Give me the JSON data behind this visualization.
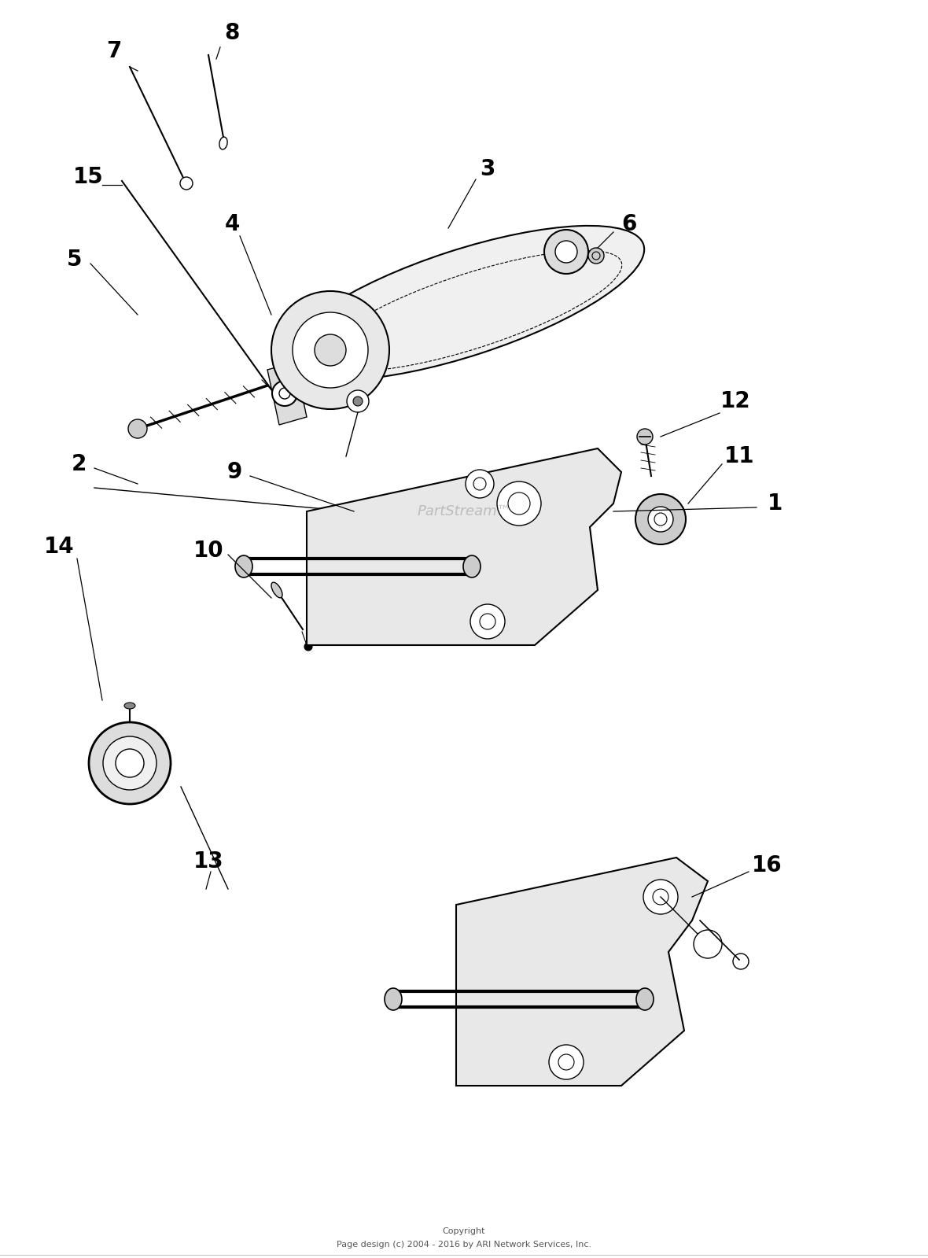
{
  "background_color": "#ffffff",
  "copyright_line1": "Copyright",
  "copyright_line2": "Page design (c) 2004 - 2016 by ARI Network Services, Inc.",
  "watermark": "PartStream™"
}
